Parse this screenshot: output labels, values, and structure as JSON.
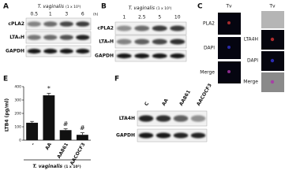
{
  "panels": {
    "a": {
      "label": "A",
      "title_italic": "T. vaginalis",
      "title_unit": "(1 x 10⁵)",
      "columns": [
        "0.5",
        "1",
        "3",
        "6"
      ],
      "column_unit": "(h)",
      "rows": [
        "cPLA2",
        "LTA₄H",
        "GAPDH"
      ]
    },
    "b": {
      "label": "B",
      "title_italic": "T. vaginalis",
      "title_unit": "(1 x 10⁵)",
      "columns": [
        "1",
        "2.5",
        "5",
        "10"
      ],
      "rows": [
        "cPLA2",
        "LTA₄H",
        "GAPDH"
      ]
    },
    "c": {
      "label": "C",
      "left_header": "Tv",
      "right_header": "Tv",
      "left_rows": [
        "PLA2",
        "DAPI",
        "Merge"
      ],
      "right_rows": [
        "LTA4H",
        "DAPI",
        "Merge"
      ]
    },
    "f": {
      "label": "F",
      "columns": [
        "C",
        "AA",
        "AA861",
        "AACOCF3"
      ],
      "rows": [
        "LTA4H",
        "GAPDH"
      ]
    }
  },
  "chart_data": {
    "type": "bar",
    "label": "E",
    "y_label": "LTB4 (pg/ml)",
    "x_label_italic": "T. vaginalis",
    "x_label_unit": "(1 x 10⁵)",
    "categories": [
      "-",
      "AA",
      "AA861",
      "AACOCF3"
    ],
    "values": [
      130,
      335,
      75,
      40
    ],
    "errors": [
      10,
      15,
      10,
      15
    ],
    "color": "#111111",
    "annotations": [
      {
        "text": "*",
        "category": "AA"
      },
      {
        "text": "#",
        "category": "AA861"
      },
      {
        "text": "#",
        "category": "AACOCF3"
      }
    ],
    "ylim": [
      0,
      400
    ],
    "yticks": [
      0,
      100,
      200,
      300,
      400
    ]
  }
}
